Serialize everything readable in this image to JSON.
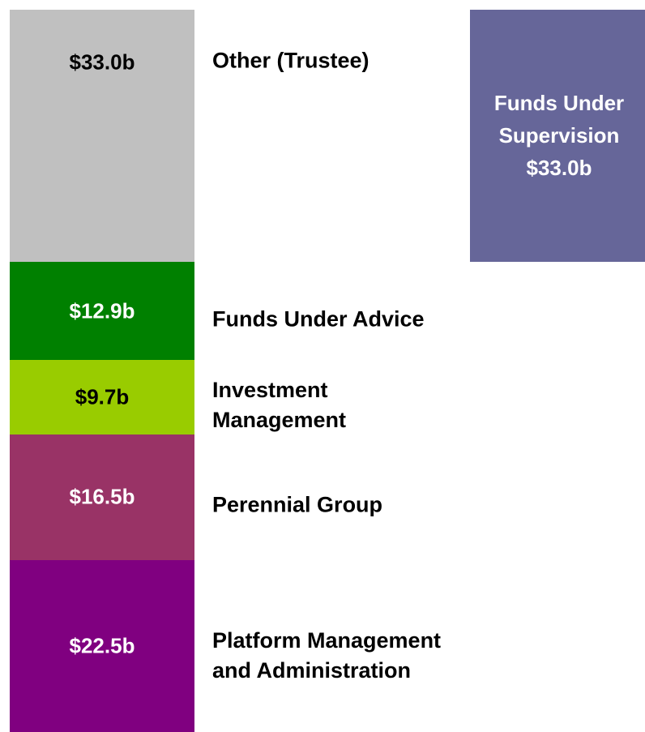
{
  "chart_data": {
    "type": "stacked_column",
    "series": [
      {
        "name": "Platform Management and Administration",
        "color": "#800080",
        "label_color": "#ffffff",
        "values": [
          22.5
        ],
        "value_labels": [
          "$22.5b"
        ]
      },
      {
        "name": "Perennial Group",
        "color": "#993366",
        "label_color": "#ffffff",
        "values": [
          16.5
        ],
        "value_labels": [
          "$16.5b"
        ]
      },
      {
        "name": "Investment Management",
        "color": "#99cc00",
        "label_color": "#000000",
        "values": [
          9.7
        ],
        "value_labels": [
          "$9.7b"
        ]
      },
      {
        "name": "Funds Under Advice",
        "color": "#008000",
        "label_color": "#ffffff",
        "values": [
          12.9
        ],
        "value_labels": [
          "$12.9b"
        ]
      },
      {
        "name": "Other (Trustee)",
        "color": "#c0c0c0",
        "label_color": "#000000",
        "values": [
          33.0
        ],
        "value_labels": [
          "$33.0b"
        ]
      }
    ],
    "supervision": {
      "name": "Funds Under Supervision",
      "color": "#666699",
      "label_color": "#ffffff",
      "value": 33.0,
      "value_label": "$33.0b"
    }
  }
}
